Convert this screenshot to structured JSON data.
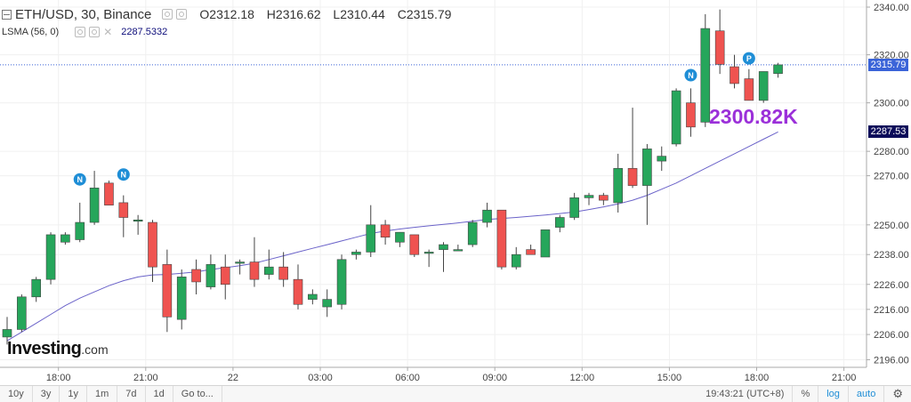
{
  "header": {
    "symbol": "ETH/USD, 30, Binance",
    "open": "O2312.18",
    "high": "H2316.62",
    "low": "L2310.44",
    "close": "C2315.79"
  },
  "indicator": {
    "name": "LSMA (56, 0)",
    "value": "2287.5332"
  },
  "price_labels": {
    "last": "2315.79",
    "lsma": "2287.53"
  },
  "annotation": "2300.82K",
  "logo": {
    "main": "Investing",
    "suffix": ".com"
  },
  "markers": [
    {
      "label": "N",
      "x_index": 5,
      "price": 2268.5
    },
    {
      "label": "N",
      "x_index": 8,
      "price": 2270.5
    },
    {
      "label": "N",
      "x_index": 47,
      "price": 2311.5
    },
    {
      "label": "P",
      "x_index": 51,
      "price": 2318.5
    }
  ],
  "toolbar": {
    "ranges": [
      "10y",
      "3y",
      "1y",
      "1m",
      "7d",
      "1d"
    ],
    "goto": "Go to...",
    "time": "19:43:21",
    "tz": "(UTC+8)",
    "percent": "%",
    "log": "log",
    "auto": "auto",
    "settings_icon": "gear-icon"
  },
  "colors": {
    "up": "#26a65b",
    "down": "#ef5350",
    "lsma": "#6b63c9",
    "accent": "#1f8ed6",
    "annotation": "#9b30d9"
  },
  "chart_data": {
    "type": "candlestick",
    "y_axis": {
      "min": 2193,
      "max": 2343,
      "scale": "log",
      "ticks": [
        2196.0,
        2206.0,
        2216.0,
        2226.0,
        2238.0,
        2250.0,
        2270.0,
        2280.0,
        2300.0,
        2320.0,
        2340.0
      ]
    },
    "x_axis": {
      "labels": [
        {
          "label": "18:00",
          "index": 2
        },
        {
          "label": "21:00",
          "index": 8
        },
        {
          "label": "22",
          "index": 14
        },
        {
          "label": "03:00",
          "index": 20
        },
        {
          "label": "06:00",
          "index": 26
        },
        {
          "label": "09:00",
          "index": 32
        },
        {
          "label": "12:00",
          "index": 38
        },
        {
          "label": "15:00",
          "index": 44
        },
        {
          "label": "18:00",
          "index": 50
        },
        {
          "label": "21:00",
          "index": 56
        }
      ]
    },
    "candles": [
      {
        "o": 2205,
        "h": 2213,
        "l": 2202,
        "c": 2208
      },
      {
        "o": 2208,
        "h": 2222,
        "l": 2207,
        "c": 2221
      },
      {
        "o": 2221,
        "h": 2229,
        "l": 2219,
        "c": 2228
      },
      {
        "o": 2228,
        "h": 2247,
        "l": 2226,
        "c": 2246
      },
      {
        "o": 2243,
        "h": 2247,
        "l": 2242,
        "c": 2246
      },
      {
        "o": 2244,
        "h": 2259,
        "l": 2243,
        "c": 2251
      },
      {
        "o": 2251,
        "h": 2272,
        "l": 2250,
        "c": 2265
      },
      {
        "o": 2267,
        "h": 2268,
        "l": 2258,
        "c": 2258
      },
      {
        "o": 2259,
        "h": 2262,
        "l": 2245,
        "c": 2253
      },
      {
        "o": 2252,
        "h": 2254,
        "l": 2246,
        "c": 2252
      },
      {
        "o": 2251,
        "h": 2252,
        "l": 2227,
        "c": 2233
      },
      {
        "o": 2234,
        "h": 2240,
        "l": 2207,
        "c": 2213
      },
      {
        "o": 2212,
        "h": 2232,
        "l": 2208,
        "c": 2229
      },
      {
        "o": 2232,
        "h": 2236,
        "l": 2222,
        "c": 2227
      },
      {
        "o": 2225,
        "h": 2238,
        "l": 2224,
        "c": 2234
      },
      {
        "o": 2233,
        "h": 2238,
        "l": 2220,
        "c": 2226
      },
      {
        "o": 2235,
        "h": 2236,
        "l": 2230,
        "c": 2235
      },
      {
        "o": 2235,
        "h": 2245,
        "l": 2225,
        "c": 2228
      },
      {
        "o": 2230,
        "h": 2240,
        "l": 2228,
        "c": 2233
      },
      {
        "o": 2233,
        "h": 2239,
        "l": 2225,
        "c": 2228
      },
      {
        "o": 2228,
        "h": 2234,
        "l": 2216,
        "c": 2218
      },
      {
        "o": 2220,
        "h": 2224,
        "l": 2218,
        "c": 2222
      },
      {
        "o": 2217,
        "h": 2224,
        "l": 2213,
        "c": 2220
      },
      {
        "o": 2218,
        "h": 2238,
        "l": 2216,
        "c": 2236
      },
      {
        "o": 2238,
        "h": 2240,
        "l": 2236,
        "c": 2239
      },
      {
        "o": 2239,
        "h": 2258,
        "l": 2237,
        "c": 2250
      },
      {
        "o": 2250,
        "h": 2252,
        "l": 2242,
        "c": 2245
      },
      {
        "o": 2243,
        "h": 2247,
        "l": 2241,
        "c": 2247
      },
      {
        "o": 2246,
        "h": 2246,
        "l": 2237,
        "c": 2238
      },
      {
        "o": 2239,
        "h": 2240,
        "l": 2233,
        "c": 2239
      },
      {
        "o": 2240,
        "h": 2243,
        "l": 2231,
        "c": 2242
      },
      {
        "o": 2240,
        "h": 2242,
        "l": 2240,
        "c": 2240
      },
      {
        "o": 2242,
        "h": 2252,
        "l": 2241,
        "c": 2251
      },
      {
        "o": 2251,
        "h": 2259,
        "l": 2249,
        "c": 2256
      },
      {
        "o": 2256,
        "h": 2256,
        "l": 2232,
        "c": 2233
      },
      {
        "o": 2233,
        "h": 2241,
        "l": 2232,
        "c": 2238
      },
      {
        "o": 2240,
        "h": 2242,
        "l": 2238,
        "c": 2238
      },
      {
        "o": 2237,
        "h": 2248,
        "l": 2237,
        "c": 2248
      },
      {
        "o": 2249,
        "h": 2254,
        "l": 2247,
        "c": 2253
      },
      {
        "o": 2253,
        "h": 2263,
        "l": 2252,
        "c": 2261
      },
      {
        "o": 2261,
        "h": 2263,
        "l": 2258,
        "c": 2262
      },
      {
        "o": 2262,
        "h": 2263,
        "l": 2258,
        "c": 2260
      },
      {
        "o": 2259,
        "h": 2279,
        "l": 2255,
        "c": 2273
      },
      {
        "o": 2273,
        "h": 2298,
        "l": 2265,
        "c": 2266
      },
      {
        "o": 2266,
        "h": 2283,
        "l": 2250,
        "c": 2281
      },
      {
        "o": 2276,
        "h": 2282,
        "l": 2272,
        "c": 2278
      },
      {
        "o": 2283,
        "h": 2306,
        "l": 2282,
        "c": 2305
      },
      {
        "o": 2300,
        "h": 2306,
        "l": 2286,
        "c": 2290
      },
      {
        "o": 2292,
        "h": 2337,
        "l": 2290,
        "c": 2331
      },
      {
        "o": 2330,
        "h": 2339,
        "l": 2312,
        "c": 2316
      },
      {
        "o": 2315,
        "h": 2320,
        "l": 2306,
        "c": 2308
      },
      {
        "o": 2310,
        "h": 2314,
        "l": 2301,
        "c": 2301
      },
      {
        "o": 2301,
        "h": 2313,
        "l": 2300,
        "c": 2313
      },
      {
        "o": 2312.18,
        "h": 2316.62,
        "l": 2310.44,
        "c": 2315.79
      }
    ],
    "lsma": [
      2203.5,
      2207,
      2210.5,
      2214,
      2217.5,
      2220.5,
      2223,
      2225.5,
      2227.5,
      2229,
      2229.8,
      2230,
      2230.5,
      2231,
      2232,
      2232.7,
      2233.5,
      2234.5,
      2236,
      2237.5,
      2239,
      2240.5,
      2242,
      2243.5,
      2245,
      2246.5,
      2247.5,
      2248.3,
      2249,
      2249.6,
      2250.2,
      2250.8,
      2251.5,
      2252.2,
      2252.6,
      2253,
      2253.5,
      2254,
      2254.6,
      2255.2,
      2256.2,
      2257.3,
      2258.5,
      2260,
      2262,
      2264.5,
      2267,
      2270,
      2273,
      2276,
      2279,
      2282,
      2285,
      2288
    ]
  }
}
